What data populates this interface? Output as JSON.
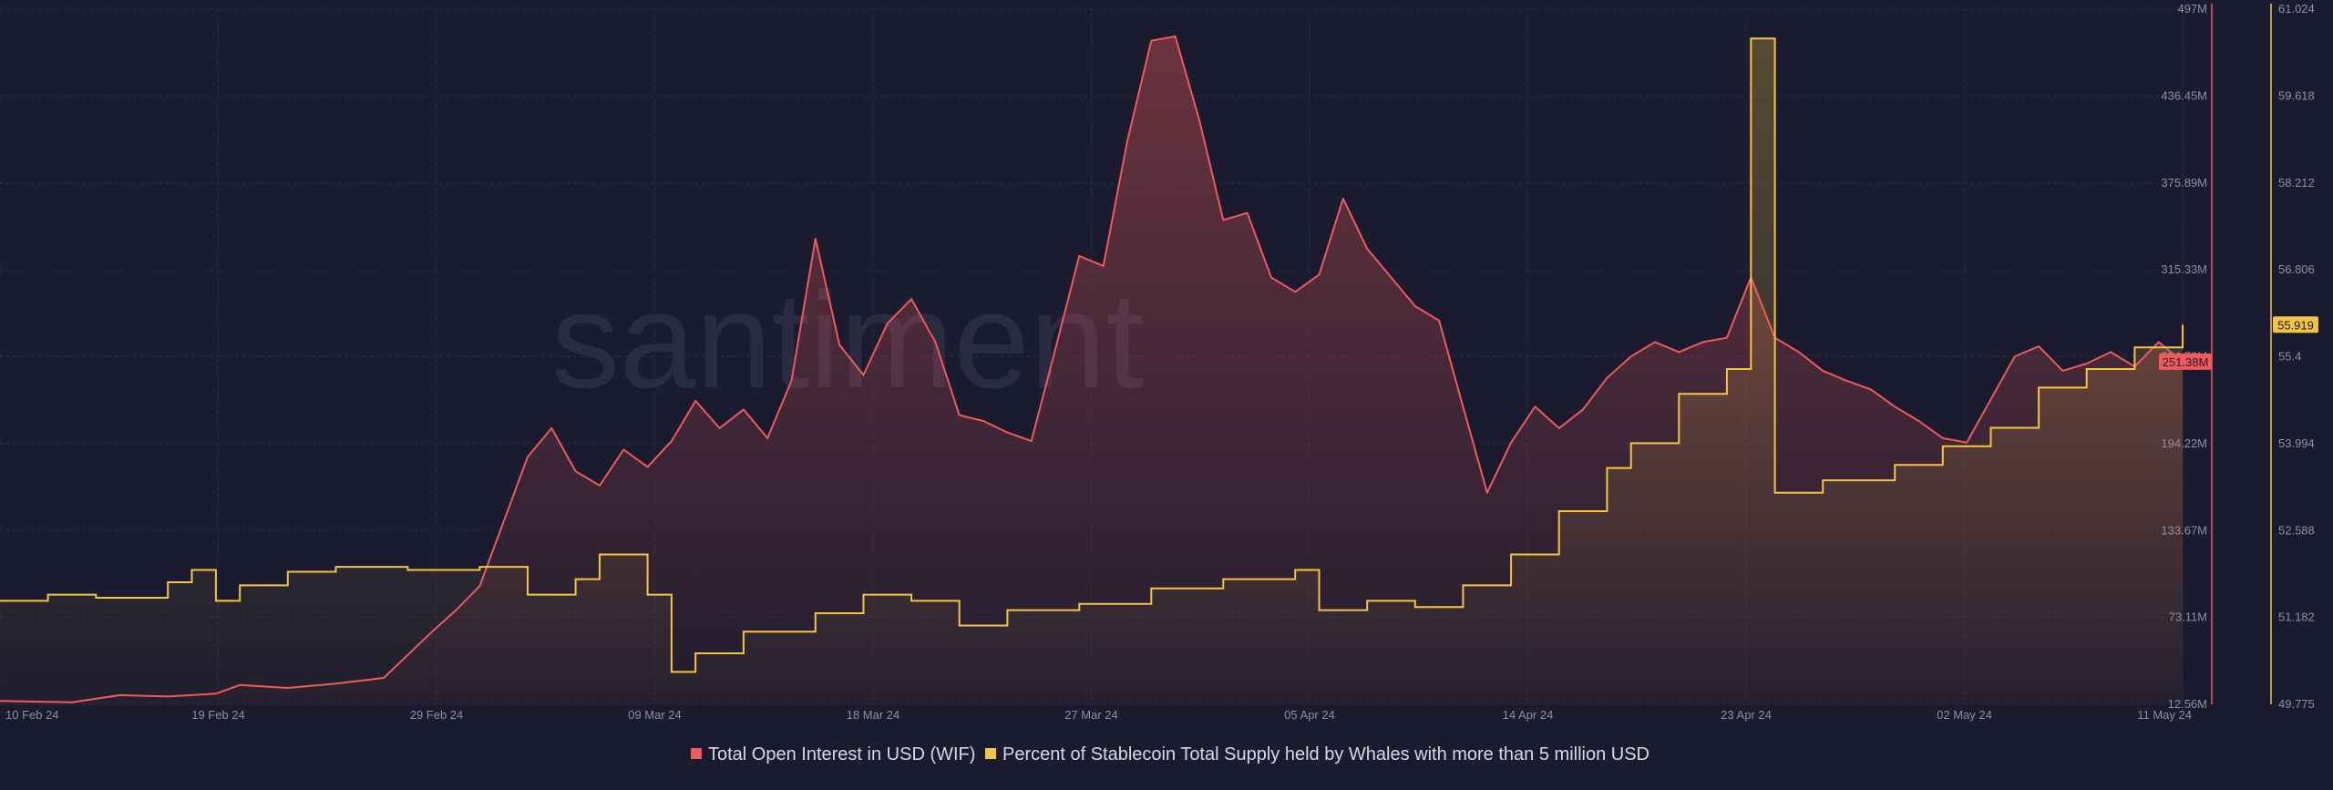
{
  "watermark": "santiment",
  "colors": {
    "background": "#1a1b2e",
    "open_interest": "#f05a5a",
    "stablecoin": "#f5c542",
    "axis_text": "#8c8fa6",
    "grid": "#2a2c40"
  },
  "chart_data": {
    "type": "line",
    "x_tick_labels": [
      "10 Feb 24",
      "19 Feb 24",
      "29 Feb 24",
      "09 Mar 24",
      "18 Mar 24",
      "27 Mar 24",
      "05 Apr 24",
      "14 Apr 24",
      "23 Apr 24",
      "02 May 24",
      "11 May 24"
    ],
    "x_range": [
      "2024-02-10",
      "2024-05-11"
    ],
    "left_axis": {
      "series": "Total Open Interest in USD (WIF)",
      "ticks": [
        "497M",
        "436.45M",
        "375.89M",
        "315.33M",
        "254.78M",
        "194.22M",
        "133.67M",
        "73.11M",
        "12.56M"
      ],
      "range": [
        12.56,
        497
      ]
    },
    "right_axis": {
      "series": "Percent of Stablecoin Total Supply held by Whales with more than 5 million USD",
      "ticks": [
        "61.024",
        "59.618",
        "58.212",
        "56.806",
        "55.4",
        "53.994",
        "52.588",
        "51.182",
        "49.775"
      ],
      "range": [
        49.775,
        61.024
      ]
    },
    "current_values": {
      "open_interest_label": "251.38M",
      "stablecoin_label": "55.919"
    },
    "series": [
      {
        "name": "Total Open Interest in USD (WIF)",
        "axis": "left",
        "color": "#f05a5a",
        "points": [
          [
            "2024-02-10",
            15
          ],
          [
            "2024-02-13",
            14
          ],
          [
            "2024-02-15",
            19
          ],
          [
            "2024-02-17",
            18
          ],
          [
            "2024-02-19",
            20
          ],
          [
            "2024-02-20",
            26
          ],
          [
            "2024-02-22",
            24
          ],
          [
            "2024-02-24",
            27
          ],
          [
            "2024-02-26",
            31
          ],
          [
            "2024-02-27",
            47
          ],
          [
            "2024-02-28",
            63
          ],
          [
            "2024-02-29",
            78
          ],
          [
            "2024-03-01",
            95
          ],
          [
            "2024-03-02",
            140
          ],
          [
            "2024-03-03",
            185
          ],
          [
            "2024-03-04",
            205
          ],
          [
            "2024-03-05",
            175
          ],
          [
            "2024-03-06",
            165
          ],
          [
            "2024-03-07",
            190
          ],
          [
            "2024-03-08",
            178
          ],
          [
            "2024-03-09",
            196
          ],
          [
            "2024-03-10",
            224
          ],
          [
            "2024-03-11",
            205
          ],
          [
            "2024-03-12",
            218
          ],
          [
            "2024-03-13",
            198
          ],
          [
            "2024-03-14",
            238
          ],
          [
            "2024-03-15",
            337
          ],
          [
            "2024-03-16",
            263
          ],
          [
            "2024-03-17",
            242
          ],
          [
            "2024-03-18",
            278
          ],
          [
            "2024-03-19",
            295
          ],
          [
            "2024-03-20",
            265
          ],
          [
            "2024-03-21",
            214
          ],
          [
            "2024-03-22",
            210
          ],
          [
            "2024-03-23",
            202
          ],
          [
            "2024-03-24",
            196
          ],
          [
            "2024-03-25",
            260
          ],
          [
            "2024-03-26",
            325
          ],
          [
            "2024-03-27",
            318
          ],
          [
            "2024-03-28",
            405
          ],
          [
            "2024-03-29",
            475
          ],
          [
            "2024-03-30",
            478
          ],
          [
            "2024-03-31",
            420
          ],
          [
            "2024-04-01",
            350
          ],
          [
            "2024-04-02",
            355
          ],
          [
            "2024-04-03",
            310
          ],
          [
            "2024-04-04",
            300
          ],
          [
            "2024-04-05",
            312
          ],
          [
            "2024-04-06",
            365
          ],
          [
            "2024-04-07",
            330
          ],
          [
            "2024-04-08",
            310
          ],
          [
            "2024-04-09",
            290
          ],
          [
            "2024-04-10",
            280
          ],
          [
            "2024-04-11",
            220
          ],
          [
            "2024-04-12",
            160
          ],
          [
            "2024-04-13",
            195
          ],
          [
            "2024-04-14",
            220
          ],
          [
            "2024-04-15",
            205
          ],
          [
            "2024-04-16",
            218
          ],
          [
            "2024-04-17",
            240
          ],
          [
            "2024-04-18",
            255
          ],
          [
            "2024-04-19",
            265
          ],
          [
            "2024-04-20",
            258
          ],
          [
            "2024-04-21",
            265
          ],
          [
            "2024-04-22",
            268
          ],
          [
            "2024-04-23",
            310
          ],
          [
            "2024-04-24",
            268
          ],
          [
            "2024-04-25",
            258
          ],
          [
            "2024-04-26",
            245
          ],
          [
            "2024-04-27",
            238
          ],
          [
            "2024-04-28",
            232
          ],
          [
            "2024-04-29",
            220
          ],
          [
            "2024-04-30",
            210
          ],
          [
            "2024-05-01",
            198
          ],
          [
            "2024-05-02",
            195
          ],
          [
            "2024-05-03",
            225
          ],
          [
            "2024-05-04",
            255
          ],
          [
            "2024-05-05",
            262
          ],
          [
            "2024-05-06",
            245
          ],
          [
            "2024-05-07",
            250
          ],
          [
            "2024-05-08",
            258
          ],
          [
            "2024-05-09",
            248
          ],
          [
            "2024-05-10",
            265
          ],
          [
            "2024-05-11",
            251.38
          ]
        ]
      },
      {
        "name": "Percent of Stablecoin Total Supply held by Whales with more than 5 million USD",
        "axis": "right",
        "color": "#f5c542",
        "points": [
          [
            "2024-02-10",
            51.45
          ],
          [
            "2024-02-12",
            51.55
          ],
          [
            "2024-02-14",
            51.5
          ],
          [
            "2024-02-17",
            51.75
          ],
          [
            "2024-02-18",
            51.95
          ],
          [
            "2024-02-19",
            51.45
          ],
          [
            "2024-02-20",
            51.7
          ],
          [
            "2024-02-22",
            51.92
          ],
          [
            "2024-02-24",
            52.0
          ],
          [
            "2024-02-27",
            51.95
          ],
          [
            "2024-03-01",
            52.0
          ],
          [
            "2024-03-03",
            51.55
          ],
          [
            "2024-03-05",
            51.8
          ],
          [
            "2024-03-06",
            52.2
          ],
          [
            "2024-03-08",
            51.55
          ],
          [
            "2024-03-09",
            50.3
          ],
          [
            "2024-03-10",
            50.6
          ],
          [
            "2024-03-12",
            50.95
          ],
          [
            "2024-03-15",
            51.25
          ],
          [
            "2024-03-17",
            51.55
          ],
          [
            "2024-03-19",
            51.45
          ],
          [
            "2024-03-21",
            51.05
          ],
          [
            "2024-03-23",
            51.3
          ],
          [
            "2024-03-26",
            51.4
          ],
          [
            "2024-03-29",
            51.65
          ],
          [
            "2024-04-01",
            51.8
          ],
          [
            "2024-04-04",
            51.95
          ],
          [
            "2024-04-05",
            51.3
          ],
          [
            "2024-04-07",
            51.45
          ],
          [
            "2024-04-09",
            51.35
          ],
          [
            "2024-04-11",
            51.7
          ],
          [
            "2024-04-13",
            52.2
          ],
          [
            "2024-04-15",
            52.9
          ],
          [
            "2024-04-17",
            53.6
          ],
          [
            "2024-04-18",
            54.0
          ],
          [
            "2024-04-20",
            54.8
          ],
          [
            "2024-04-22",
            55.2
          ],
          [
            "2024-04-23",
            60.55
          ],
          [
            "2024-04-24",
            53.2
          ],
          [
            "2024-04-26",
            53.4
          ],
          [
            "2024-04-29",
            53.65
          ],
          [
            "2024-05-01",
            53.95
          ],
          [
            "2024-05-03",
            54.25
          ],
          [
            "2024-05-05",
            54.9
          ],
          [
            "2024-05-07",
            55.2
          ],
          [
            "2024-05-09",
            55.55
          ],
          [
            "2024-05-11",
            55.919
          ]
        ]
      }
    ],
    "grid": true,
    "legend_position": "bottom-center"
  },
  "legend": {
    "items": [
      {
        "label": "Total Open Interest in USD (WIF)",
        "color": "#f05a5a"
      },
      {
        "label": "Percent of Stablecoin Total Supply held by Whales with more than 5 million USD",
        "color": "#f5c542"
      }
    ]
  }
}
